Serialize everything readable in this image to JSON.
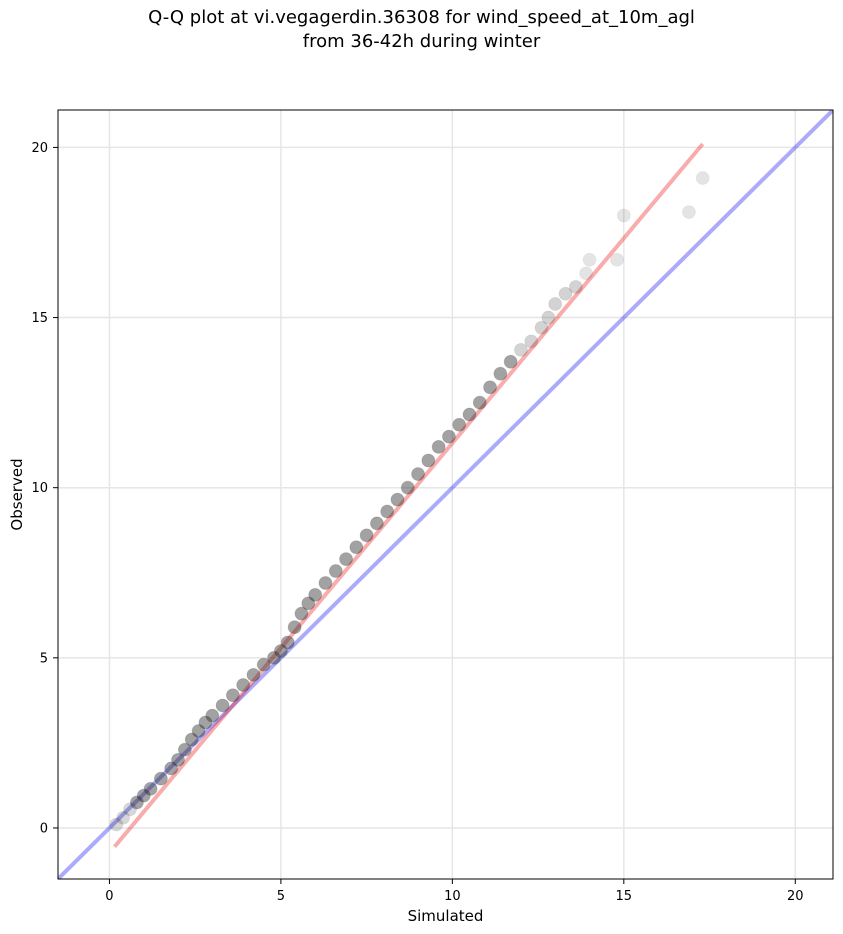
{
  "title_line1": "Q-Q plot at vi.vegagerdin.36308 for wind_speed_at_10m_agl",
  "title_line2": "from 36-42h during winter",
  "colors": {
    "reference_line": "#0000ee",
    "fit_line": "#ee1111",
    "points": "#222222",
    "grid": "#e6e6e6"
  },
  "chart_data": {
    "type": "scatter",
    "xlabel": "Simulated",
    "ylabel": "Observed",
    "xlim": [
      -1.5,
      21.1
    ],
    "ylim": [
      -1.5,
      21.1
    ],
    "xticks": [
      0,
      5,
      10,
      15,
      20
    ],
    "yticks": [
      0,
      5,
      10,
      15,
      20
    ],
    "grid": true,
    "reference_line": {
      "name": "1:1",
      "x": [
        -1.5,
        21.1
      ],
      "y": [
        -1.5,
        21.1
      ]
    },
    "fit_line": {
      "x": [
        0.15,
        17.3
      ],
      "y": [
        -0.55,
        20.1
      ]
    },
    "quantiles": {
      "x": [
        0.2,
        0.4,
        0.6,
        0.8,
        1.0,
        1.2,
        1.5,
        1.8,
        2.0,
        2.2,
        2.4,
        2.6,
        2.8,
        3.0,
        3.3,
        3.6,
        3.9,
        4.2,
        4.5,
        4.8,
        5.0,
        5.2,
        5.4,
        5.6,
        5.8,
        6.0,
        6.3,
        6.6,
        6.9,
        7.2,
        7.5,
        7.8,
        8.1,
        8.4,
        8.7,
        9.0,
        9.3,
        9.6,
        9.9,
        10.2,
        10.5,
        10.8,
        11.1,
        11.4,
        11.7,
        12.0,
        12.3,
        12.6,
        12.8,
        13.0,
        13.3,
        13.6,
        13.9,
        14.0,
        14.8,
        15.0,
        16.9,
        17.3
      ],
      "y": [
        0.1,
        0.3,
        0.55,
        0.75,
        0.95,
        1.15,
        1.45,
        1.75,
        2.0,
        2.3,
        2.6,
        2.85,
        3.1,
        3.3,
        3.6,
        3.9,
        4.2,
        4.5,
        4.8,
        5.0,
        5.2,
        5.45,
        5.9,
        6.3,
        6.6,
        6.85,
        7.2,
        7.55,
        7.9,
        8.25,
        8.6,
        8.95,
        9.3,
        9.65,
        10.0,
        10.4,
        10.8,
        11.2,
        11.5,
        11.85,
        12.15,
        12.5,
        12.95,
        13.35,
        13.7,
        14.05,
        14.3,
        14.7,
        15.0,
        15.4,
        15.7,
        15.9,
        16.3,
        16.7,
        16.7,
        18.0,
        18.1,
        19.1
      ]
    }
  }
}
